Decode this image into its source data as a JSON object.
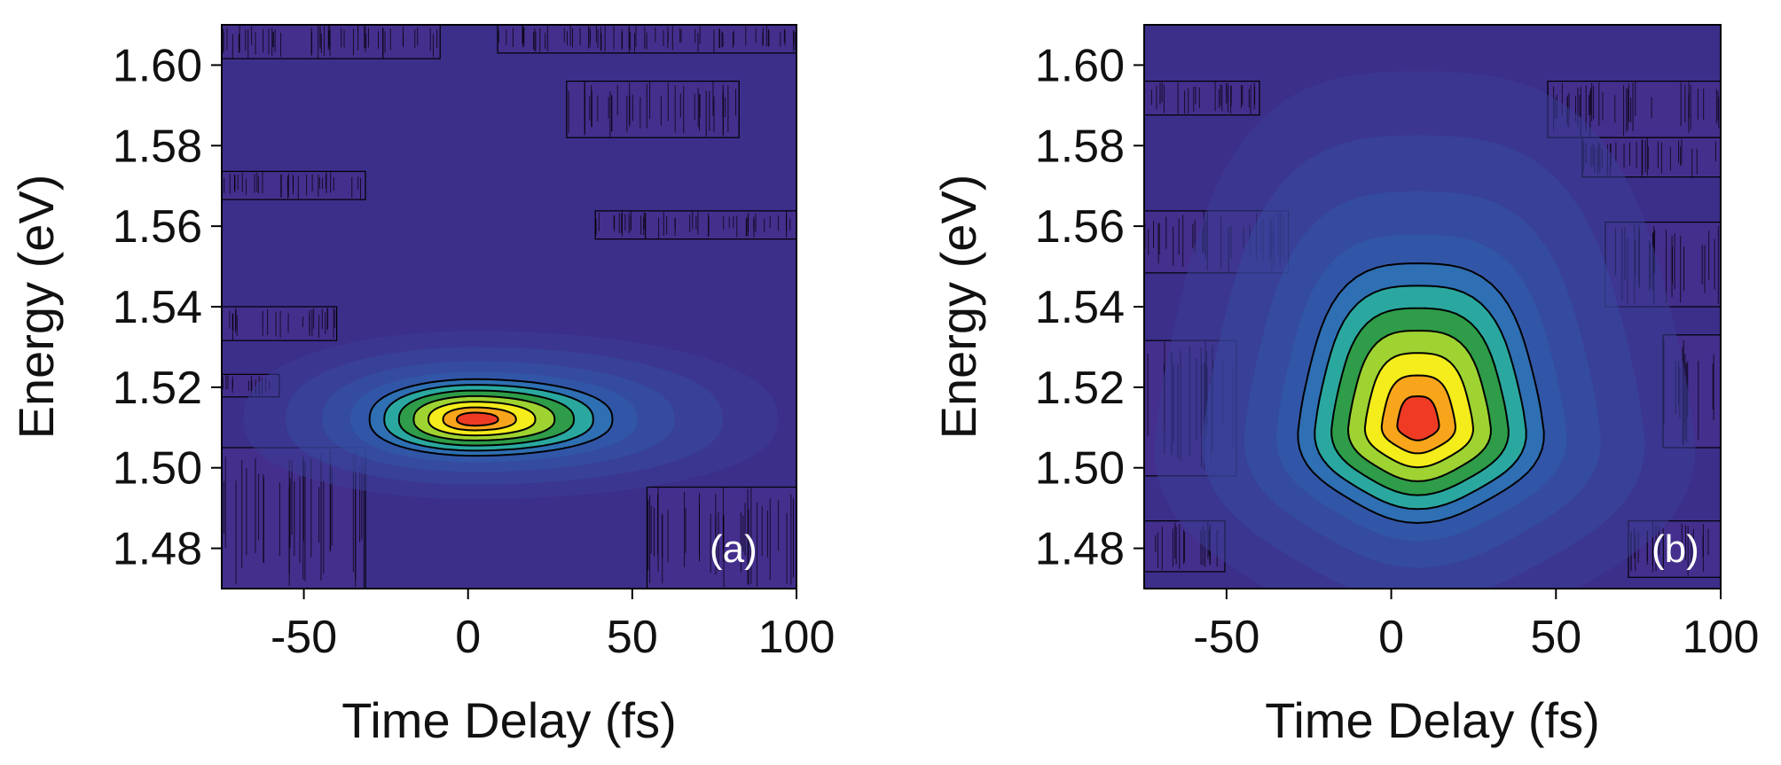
{
  "chart_data": [
    {
      "type": "heatmap",
      "panel_label": "(a)",
      "title": "",
      "xlabel": "Time Delay (fs)",
      "ylabel": "Energy (eV)",
      "xlim": [
        -75,
        100
      ],
      "ylim": [
        1.47,
        1.61
      ],
      "xticks": [
        -50,
        0,
        50,
        100
      ],
      "xtick_labels": [
        "-50",
        "0",
        "50",
        "100"
      ],
      "yticks": [
        1.48,
        1.5,
        1.52,
        1.54,
        1.56,
        1.58,
        1.6
      ],
      "ytick_labels": [
        "1.48",
        "1.50",
        "1.52",
        "1.54",
        "1.56",
        "1.58",
        "1.60"
      ],
      "peak": {
        "time_fs": 2,
        "energy_ev": 1.512
      },
      "contour_extent": {
        "time_min_fs": -30,
        "time_max_fs": 44,
        "energy_min_ev": 1.503,
        "energy_max_ev": 1.522
      },
      "colormap": [
        "#3a2d86",
        "#3346a0",
        "#2f6fb3",
        "#2aa8a0",
        "#2e9c48",
        "#9fd332",
        "#f4ec1b",
        "#f9a51b",
        "#ef3b24"
      ],
      "background_color": "#3c2f8a"
    },
    {
      "type": "heatmap",
      "panel_label": "(b)",
      "title": "",
      "xlabel": "Time Delay (fs)",
      "ylabel": "Energy (eV)",
      "xlim": [
        -75,
        100
      ],
      "ylim": [
        1.47,
        1.61
      ],
      "xticks": [
        -50,
        0,
        50,
        100
      ],
      "xtick_labels": [
        "-50",
        "0",
        "50",
        "100"
      ],
      "yticks": [
        1.48,
        1.5,
        1.52,
        1.54,
        1.56,
        1.58,
        1.6
      ],
      "ytick_labels": [
        "1.48",
        "1.50",
        "1.52",
        "1.54",
        "1.56",
        "1.58",
        "1.60"
      ],
      "peak": {
        "time_fs": 8,
        "energy_ev": 1.511
      },
      "contour_extent": {
        "time_min_fs": -28,
        "time_max_fs": 46,
        "energy_min_ev": 1.487,
        "energy_max_ev": 1.552
      },
      "colormap": [
        "#3a2d86",
        "#3346a0",
        "#2f6fb3",
        "#2aa8a0",
        "#2e9c48",
        "#9fd332",
        "#f4ec1b",
        "#f9a51b",
        "#ef3b24"
      ],
      "background_color": "#3c2f8a"
    }
  ]
}
